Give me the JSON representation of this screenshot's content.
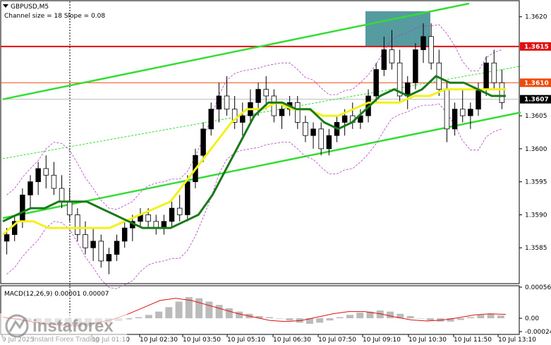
{
  "chart_data": {
    "type": "candlestick",
    "symbol_label": "GBPUSD,M5",
    "channel_label": "Channel size = 18 Slope = 0.08",
    "price_axis": {
      "ylim": [
        1.358,
        1.3622
      ],
      "ticks": [
        {
          "value": 1.362,
          "label": "1.3620"
        },
        {
          "value": 1.3615,
          "label": "1.3615"
        },
        {
          "value": 1.361,
          "label": "1.3610"
        },
        {
          "value": 1.3607,
          "label": "1.3607"
        },
        {
          "value": 1.3605,
          "label": "1.3605"
        },
        {
          "value": 1.36,
          "label": "1.3600"
        },
        {
          "value": 1.3595,
          "label": "1.3595"
        },
        {
          "value": 1.359,
          "label": "1.3590"
        },
        {
          "value": 1.3585,
          "label": "1.3585"
        }
      ]
    },
    "levels": [
      {
        "value": 1.36155,
        "label": "1.3615",
        "color": "#e01010"
      },
      {
        "value": 1.361,
        "label": "1.3610",
        "color": "#f04a0a"
      },
      {
        "value": 1.36075,
        "label": "1.3607",
        "color": "#000000"
      }
    ],
    "time_labels": [
      "9 Jul 2025",
      "10 Jul 01:10",
      "10 Jul 02:30",
      "10 Jul 03:50",
      "10 Jul 05:10",
      "10 Jul 06:30",
      "10 Jul 07:50",
      "10 Jul 09:10",
      "10 Jul 10:30",
      "10 Jul 11:50",
      "10 Jul 13:10"
    ],
    "candles": [
      [
        1.3586,
        1.3588,
        1.3584,
        1.3587
      ],
      [
        1.3587,
        1.359,
        1.3586,
        1.3589
      ],
      [
        1.3589,
        1.3594,
        1.3588,
        1.3593
      ],
      [
        1.3593,
        1.3596,
        1.3591,
        1.3595
      ],
      [
        1.3595,
        1.3598,
        1.3593,
        1.3597
      ],
      [
        1.3597,
        1.3599,
        1.3594,
        1.3596
      ],
      [
        1.3596,
        1.3598,
        1.3593,
        1.3594
      ],
      [
        1.3594,
        1.3596,
        1.3591,
        1.3592
      ],
      [
        1.3592,
        1.3594,
        1.3589,
        1.359
      ],
      [
        1.359,
        1.3591,
        1.3586,
        1.3587
      ],
      [
        1.3587,
        1.3589,
        1.3584,
        1.3585
      ],
      [
        1.3585,
        1.3588,
        1.3583,
        1.3586
      ],
      [
        1.3586,
        1.3587,
        1.3582,
        1.3583
      ],
      [
        1.3583,
        1.3585,
        1.3581,
        1.3584
      ],
      [
        1.3584,
        1.3587,
        1.3583,
        1.3586
      ],
      [
        1.3586,
        1.3589,
        1.3585,
        1.3588
      ],
      [
        1.3588,
        1.359,
        1.3586,
        1.3589
      ],
      [
        1.3589,
        1.3591,
        1.3588,
        1.359
      ],
      [
        1.359,
        1.3591,
        1.3588,
        1.3589
      ],
      [
        1.3589,
        1.359,
        1.3587,
        1.3588
      ],
      [
        1.3588,
        1.359,
        1.3587,
        1.3589
      ],
      [
        1.3589,
        1.3592,
        1.3588,
        1.3591
      ],
      [
        1.3591,
        1.3593,
        1.3589,
        1.359
      ],
      [
        1.359,
        1.3596,
        1.3589,
        1.3595
      ],
      [
        1.3595,
        1.36,
        1.3594,
        1.3599
      ],
      [
        1.3599,
        1.3604,
        1.3598,
        1.3603
      ],
      [
        1.3603,
        1.3607,
        1.3602,
        1.3606
      ],
      [
        1.3606,
        1.361,
        1.3604,
        1.3608
      ],
      [
        1.3608,
        1.3611,
        1.3605,
        1.3606
      ],
      [
        1.3606,
        1.3608,
        1.3603,
        1.3604
      ],
      [
        1.3604,
        1.3607,
        1.3602,
        1.3605
      ],
      [
        1.3605,
        1.3609,
        1.3604,
        1.3607
      ],
      [
        1.3607,
        1.361,
        1.3605,
        1.3609
      ],
      [
        1.3609,
        1.3611,
        1.3606,
        1.3608
      ],
      [
        1.3608,
        1.3609,
        1.3604,
        1.3605
      ],
      [
        1.3605,
        1.3607,
        1.3603,
        1.3606
      ],
      [
        1.3606,
        1.3608,
        1.3605,
        1.3607
      ],
      [
        1.3607,
        1.3608,
        1.3603,
        1.3604
      ],
      [
        1.3604,
        1.3605,
        1.3601,
        1.3602
      ],
      [
        1.3602,
        1.3604,
        1.36,
        1.3603
      ],
      [
        1.3603,
        1.3604,
        1.3599,
        1.36
      ],
      [
        1.36,
        1.3603,
        1.3599,
        1.3602
      ],
      [
        1.3602,
        1.3605,
        1.3601,
        1.3604
      ],
      [
        1.3604,
        1.3606,
        1.3602,
        1.3605
      ],
      [
        1.3605,
        1.3607,
        1.3603,
        1.3604
      ],
      [
        1.3604,
        1.3606,
        1.3603,
        1.3605
      ],
      [
        1.3605,
        1.3609,
        1.3604,
        1.3608
      ],
      [
        1.3608,
        1.3613,
        1.3607,
        1.3612
      ],
      [
        1.3612,
        1.3617,
        1.3611,
        1.3615
      ],
      [
        1.3615,
        1.3618,
        1.3612,
        1.3613
      ],
      [
        1.3613,
        1.3615,
        1.3607,
        1.3608
      ],
      [
        1.3608,
        1.3611,
        1.3606,
        1.361
      ],
      [
        1.361,
        1.3616,
        1.3609,
        1.3615
      ],
      [
        1.3615,
        1.3619,
        1.3613,
        1.3617
      ],
      [
        1.3617,
        1.3619,
        1.3612,
        1.3613
      ],
      [
        1.3613,
        1.3615,
        1.3608,
        1.3609
      ],
      [
        1.3609,
        1.361,
        1.3601,
        1.3603
      ],
      [
        1.3603,
        1.3607,
        1.3602,
        1.3606
      ],
      [
        1.3606,
        1.3609,
        1.3604,
        1.3605
      ],
      [
        1.3605,
        1.3607,
        1.3603,
        1.3606
      ],
      [
        1.3606,
        1.361,
        1.3605,
        1.3609
      ],
      [
        1.3609,
        1.3614,
        1.3608,
        1.3613
      ],
      [
        1.3613,
        1.3615,
        1.3609,
        1.361
      ],
      [
        1.361,
        1.3612,
        1.3606,
        1.3607
      ]
    ],
    "ma_green": [
      1.3589,
      1.359,
      1.3591,
      1.3591,
      1.3592,
      1.3592,
      1.3592,
      1.3591,
      1.359,
      1.3589,
      1.3588,
      1.3588,
      1.3588,
      1.3589,
      1.359,
      1.3593,
      1.3597,
      1.3601,
      1.3605,
      1.3607,
      1.3607,
      1.3606,
      1.3606,
      1.3604,
      1.3603,
      1.3604,
      1.3606,
      1.3608,
      1.3609,
      1.3608,
      1.3609,
      1.3611,
      1.361,
      1.361,
      1.3609,
      1.3608,
      1.3608
    ],
    "ma_yellow": [
      1.3587,
      1.3589,
      1.3589,
      1.3588,
      1.3588,
      1.3588,
      1.3588,
      1.3588,
      1.3589,
      1.359,
      1.3591,
      1.3592,
      1.3595,
      1.3598,
      1.3601,
      1.3604,
      1.3606,
      1.3606,
      1.3607,
      1.3606,
      1.3606,
      1.3605,
      1.3605,
      1.3606,
      1.3607,
      1.3607,
      1.3607,
      1.3608,
      1.3608,
      1.3609,
      1.3609,
      1.3609,
      1.3609,
      1.3609
    ],
    "macd": {
      "label": "MACD(12,26,9) 0.00001 0.00007",
      "ticks": [
        {
          "value": 0.00056,
          "label": "0.00056"
        },
        {
          "value": 0.0,
          "label": "0.00"
        },
        {
          "value": -0.00024,
          "label": "-0.00024"
        }
      ],
      "ylim": [
        -0.00024,
        0.00056
      ],
      "histogram": [
        0.0,
        -2e-05,
        -5e-05,
        -8e-05,
        -0.0001,
        -0.00012,
        -0.00014,
        -0.00016,
        -0.00015,
        -0.00012,
        -8e-05,
        -5e-05,
        -2e-05,
        2e-05,
        6e-05,
        0.00012,
        0.0002,
        0.0003,
        0.00038,
        0.00036,
        0.0003,
        0.00024,
        0.00018,
        0.00012,
        8e-05,
        4e-05,
        2e-05,
        0.0,
        -4e-05,
        -8e-05,
        -0.0001,
        -8e-05,
        -4e-05,
        2e-05,
        6e-05,
        0.0001,
        0.00012,
        0.00014,
        0.00012,
        8e-05,
        4e-05,
        0.0,
        -4e-05,
        -6e-05,
        -6e-05,
        -3e-05,
        2e-05,
        6e-05,
        8e-05,
        5e-05
      ],
      "signal": [
        2e-05,
        -2e-05,
        -7e-05,
        -0.00011,
        -0.00013,
        -0.00012,
        -8e-05,
        -2e-05,
        8e-05,
        0.0002,
        0.00032,
        0.00036,
        0.00032,
        0.00024,
        0.00016,
        8e-05,
        2e-05,
        -4e-05,
        -6e-05,
        -4e-05,
        2e-05,
        8e-05,
        0.00012,
        0.00012,
        8e-05,
        2e-05,
        -3e-05,
        -5e-05,
        -3e-05,
        1e-05,
        6e-05,
        8e-05,
        7e-05
      ]
    }
  },
  "watermark": {
    "brand": "instaforex",
    "tagline": "Instant Forex Trading"
  },
  "colors": {
    "bull_candle": "#000000",
    "channel": "#33dd33",
    "ma_green": "#1a7a1a",
    "ma_yellow": "#f2f21a",
    "envelope": "#b040c0",
    "highlight_box": "#1e7a80",
    "macd_hist": "#bbbbbb",
    "macd_signal": "#dd1111"
  }
}
